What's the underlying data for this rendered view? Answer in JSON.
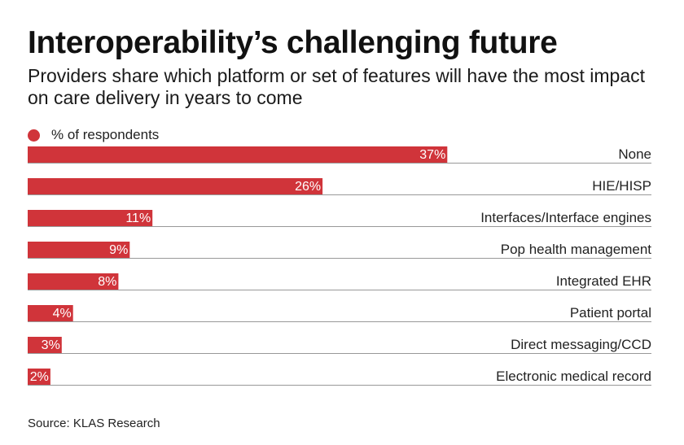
{
  "chart_data": {
    "type": "bar",
    "orientation": "horizontal",
    "title": "Interoperability’s challenging future",
    "subtitle": "Providers share which platform or set of features will have the most impact on care delivery in years to come",
    "legend": [
      "% of respondents"
    ],
    "legend_position": "top-left",
    "categories": [
      "None",
      "HIE/HISP",
      "Interfaces/Interface engines",
      "Pop health management",
      "Integrated EHR",
      "Patient portal",
      "Direct messaging/CCD",
      "Electronic medical record"
    ],
    "values": [
      37,
      26,
      11,
      9,
      8,
      4,
      3,
      2
    ],
    "value_labels": [
      "37%",
      "26%",
      "11%",
      "9%",
      "8%",
      "4%",
      "3%",
      "2%"
    ],
    "unit": "%",
    "xlim": [
      0,
      55
    ],
    "source": "Source: KLAS Research"
  },
  "colors": {
    "bar": "#d0343a",
    "baseline": "#999999"
  }
}
